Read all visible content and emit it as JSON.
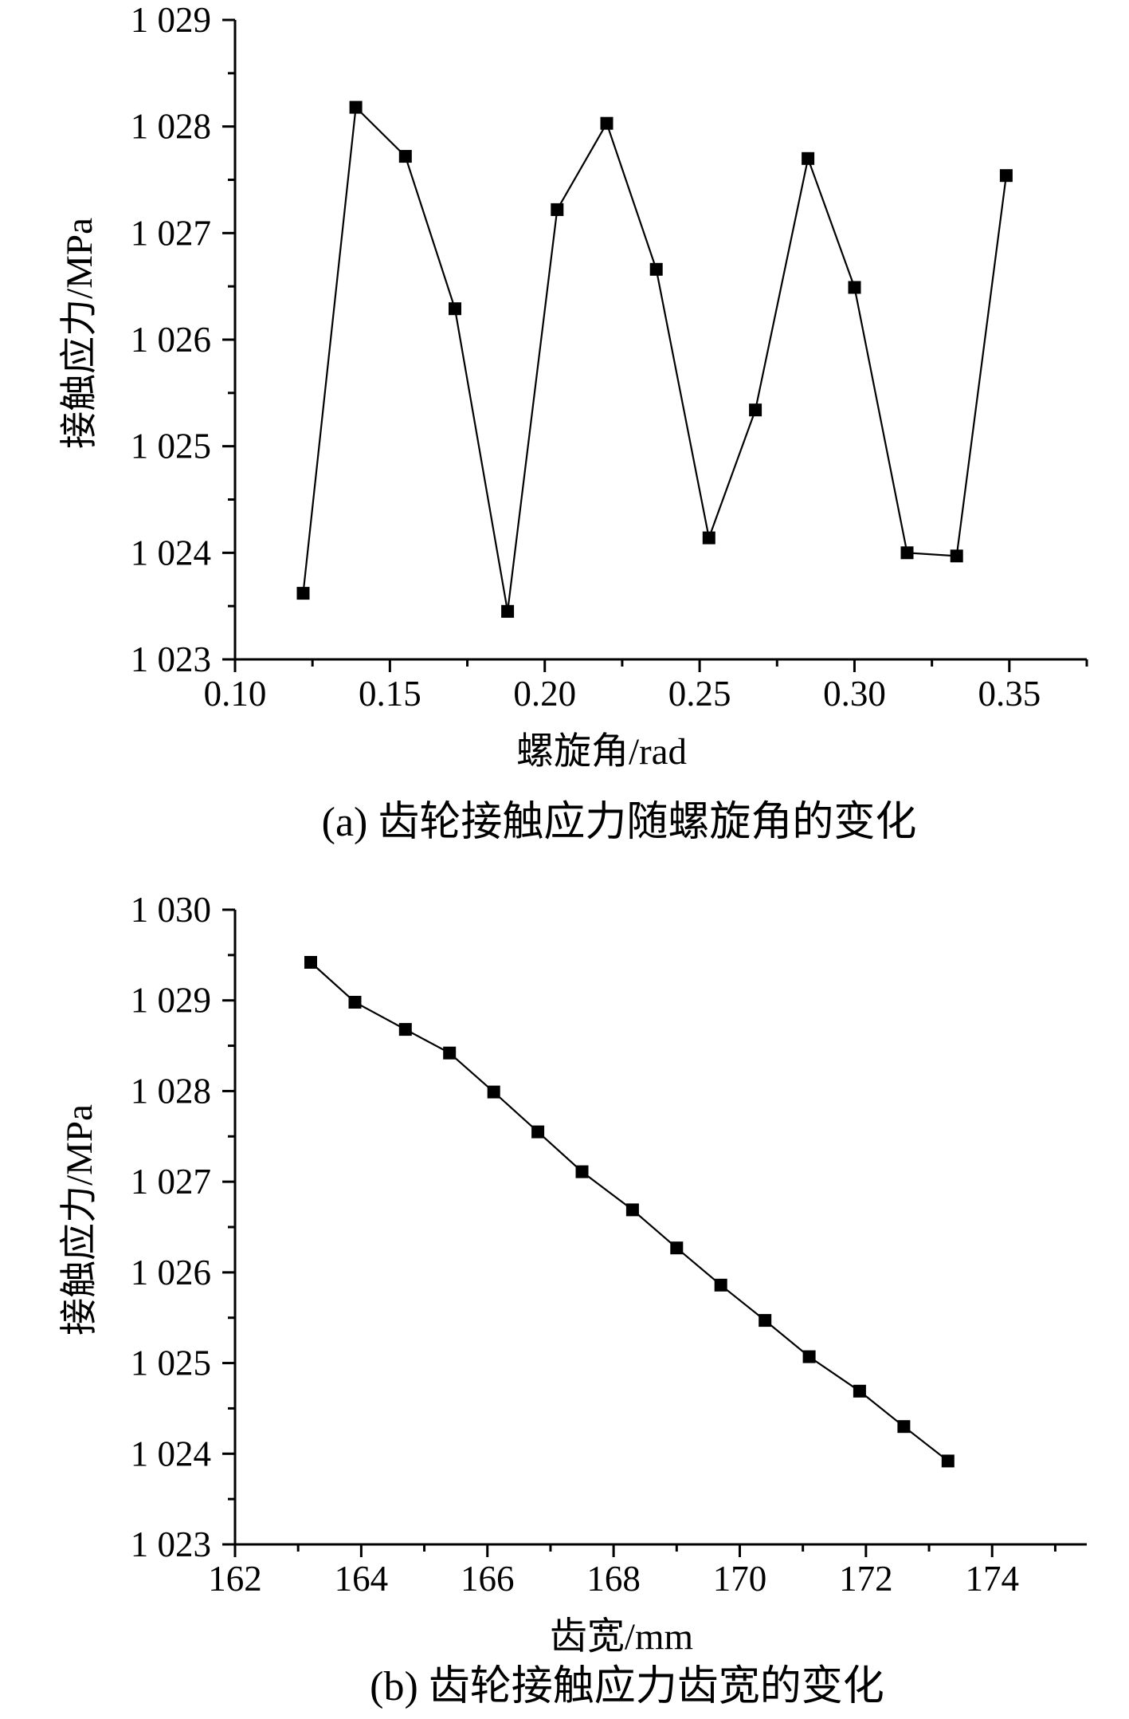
{
  "chart_data": [
    {
      "type": "line",
      "caption": "(a) 齿轮接触应力随螺旋角的变化",
      "xlabel": "螺旋角/rad",
      "ylabel": "接触应力/MPa",
      "xlim": [
        0.1,
        0.375
      ],
      "ylim": [
        1023,
        1029
      ],
      "xticks": [
        0.1,
        0.15,
        0.2,
        0.25,
        0.3,
        0.35
      ],
      "xtick_labels": [
        "0.10",
        "0.15",
        "0.20",
        "0.25",
        "0.30",
        "0.35"
      ],
      "yticks": [
        1023,
        1024,
        1025,
        1026,
        1027,
        1028,
        1029
      ],
      "ytick_labels": [
        "1 023",
        "1 024",
        "1 025",
        "1 026",
        "1 027",
        "1 028",
        "1 029"
      ],
      "grid": false,
      "marker": "square",
      "series": [
        {
          "x": [
            0.122,
            0.139,
            0.155,
            0.171,
            0.188,
            0.204,
            0.22,
            0.236,
            0.253,
            0.268,
            0.285,
            0.3,
            0.317,
            0.333,
            0.349
          ],
          "y": [
            1023.62,
            1028.18,
            1027.72,
            1026.29,
            1023.45,
            1027.22,
            1028.03,
            1026.66,
            1024.14,
            1025.34,
            1027.7,
            1026.49,
            1024.0,
            1023.97,
            1027.54
          ]
        }
      ]
    },
    {
      "type": "line",
      "caption": "(b) 齿轮接触应力齿宽的变化",
      "xlabel": "齿宽/mm",
      "ylabel": "接触应力/MPa",
      "xlim": [
        162,
        175.5
      ],
      "ylim": [
        1023,
        1030
      ],
      "xticks": [
        162,
        164,
        166,
        168,
        170,
        172,
        174
      ],
      "xtick_labels": [
        "162",
        "164",
        "166",
        "168",
        "170",
        "172",
        "174"
      ],
      "yticks": [
        1023,
        1024,
        1025,
        1026,
        1027,
        1028,
        1029,
        1030
      ],
      "ytick_labels": [
        "1 023",
        "1 024",
        "1 025",
        "1 026",
        "1 027",
        "1 028",
        "1 029",
        "1 030"
      ],
      "grid": false,
      "marker": "square",
      "series": [
        {
          "x": [
            163.2,
            163.9,
            164.7,
            165.4,
            166.1,
            166.8,
            167.5,
            168.3,
            169.0,
            169.7,
            170.4,
            171.1,
            171.9,
            172.6,
            173.3
          ],
          "y": [
            1029.42,
            1028.98,
            1028.68,
            1028.42,
            1027.99,
            1027.55,
            1027.11,
            1026.69,
            1026.27,
            1025.86,
            1025.47,
            1025.07,
            1024.69,
            1024.3,
            1023.92
          ]
        }
      ]
    }
  ]
}
